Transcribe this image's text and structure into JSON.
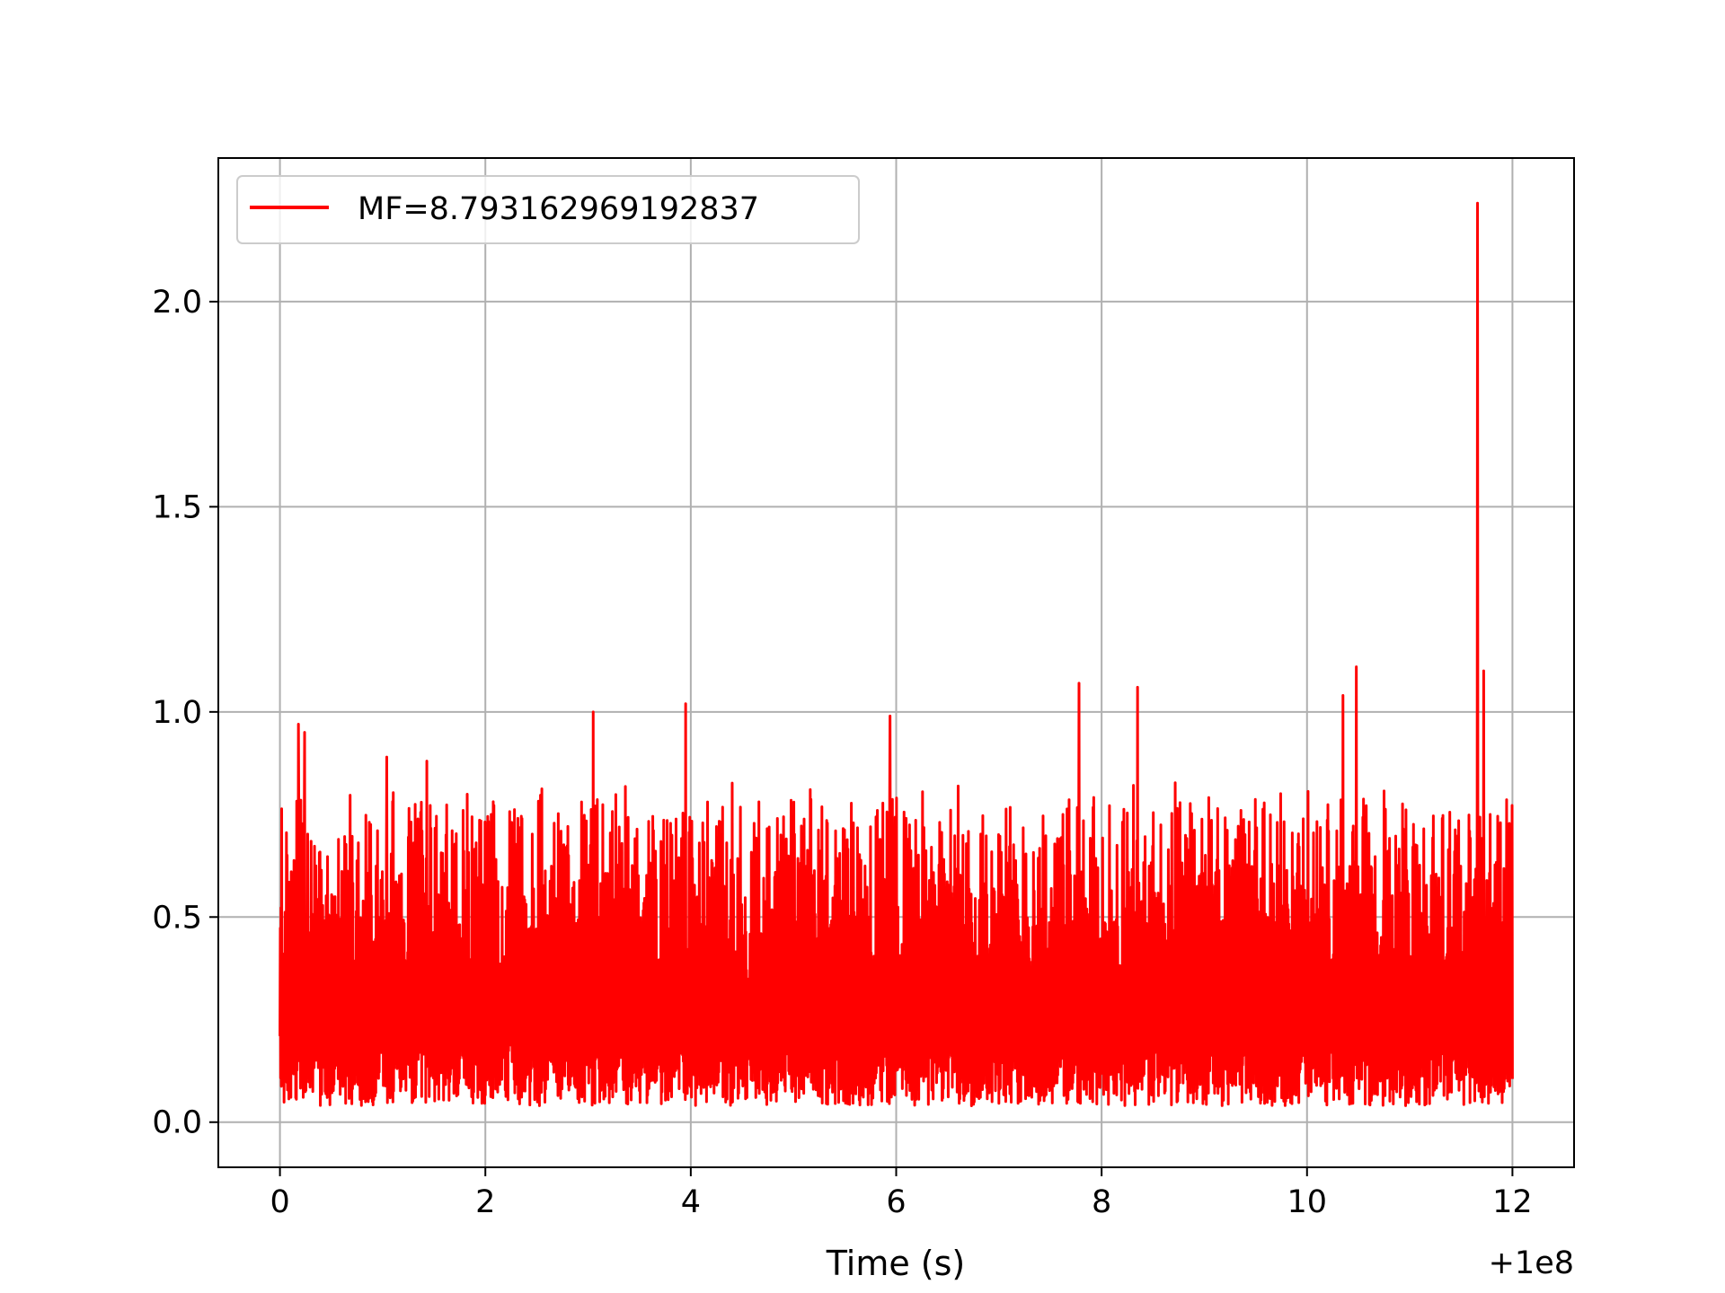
{
  "chart_data": {
    "type": "line",
    "title": "",
    "xlabel": "Time (s)",
    "ylabel": "",
    "x_offset_label": "+1e8",
    "x_ticks": [
      "0",
      "2",
      "4",
      "6",
      "8",
      "10",
      "12"
    ],
    "y_ticks": [
      "0.0",
      "0.5",
      "1.0",
      "1.5",
      "2.0"
    ],
    "xlim": [
      -0.6,
      12.6
    ],
    "ylim": [
      -0.11,
      2.35
    ],
    "grid": true,
    "legend_position": "top-left",
    "series": [
      {
        "name": "MF=8.793162969192837",
        "color": "#ff0000",
        "x_range": [
          0,
          12
        ],
        "noise_min": 0.0,
        "noise_typical_max": 0.75,
        "peaks": [
          {
            "x": 0.18,
            "y": 0.97
          },
          {
            "x": 0.24,
            "y": 0.95
          },
          {
            "x": 1.04,
            "y": 0.89
          },
          {
            "x": 1.43,
            "y": 0.88
          },
          {
            "x": 3.05,
            "y": 1.0
          },
          {
            "x": 3.95,
            "y": 1.02
          },
          {
            "x": 5.94,
            "y": 0.99
          },
          {
            "x": 7.78,
            "y": 1.07
          },
          {
            "x": 8.35,
            "y": 1.06
          },
          {
            "x": 10.35,
            "y": 1.04
          },
          {
            "x": 10.48,
            "y": 1.11
          },
          {
            "x": 11.66,
            "y": 2.24
          },
          {
            "x": 11.72,
            "y": 1.1
          }
        ]
      }
    ]
  }
}
